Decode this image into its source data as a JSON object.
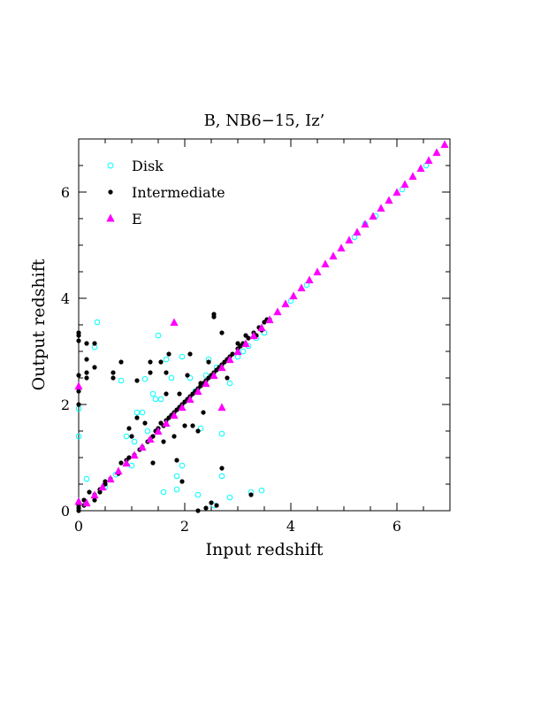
{
  "chart_data": {
    "type": "scatter",
    "title": "B, NB6−15, Iz’",
    "xlabel": "Input redshift",
    "ylabel": "Output redshift",
    "xlim": [
      0,
      7
    ],
    "ylim": [
      0,
      7
    ],
    "xticks": [
      0,
      2,
      4,
      6
    ],
    "yticks": [
      0,
      2,
      4,
      6
    ],
    "xtick_labels": [
      "0",
      "2",
      "4",
      "6"
    ],
    "ytick_labels": [
      "0",
      "2",
      "4",
      "6"
    ],
    "minor_tick_step": 0.5,
    "grid": false,
    "legend_position": "top-left",
    "series": [
      {
        "name": "Disk",
        "marker": "open-circle",
        "color": "#00ffff",
        "points": [
          [
            0.0,
            1.4
          ],
          [
            0.0,
            1.92
          ],
          [
            0.15,
            0.6
          ],
          [
            0.3,
            3.08
          ],
          [
            0.35,
            3.55
          ],
          [
            0.5,
            0.45
          ],
          [
            0.7,
            0.68
          ],
          [
            0.8,
            2.45
          ],
          [
            0.9,
            1.4
          ],
          [
            1.0,
            0.85
          ],
          [
            1.05,
            1.3
          ],
          [
            1.1,
            1.85
          ],
          [
            1.2,
            1.85
          ],
          [
            1.25,
            2.48
          ],
          [
            1.3,
            1.5
          ],
          [
            1.4,
            2.2
          ],
          [
            1.45,
            2.1
          ],
          [
            1.5,
            3.3
          ],
          [
            1.55,
            2.1
          ],
          [
            1.6,
            0.35
          ],
          [
            1.65,
            2.85
          ],
          [
            1.75,
            2.5
          ],
          [
            1.85,
            0.4
          ],
          [
            1.85,
            0.65
          ],
          [
            1.95,
            0.85
          ],
          [
            1.95,
            2.9
          ],
          [
            2.1,
            2.5
          ],
          [
            2.2,
            2.25
          ],
          [
            2.25,
            0.3
          ],
          [
            2.3,
            1.55
          ],
          [
            2.4,
            2.55
          ],
          [
            2.45,
            2.85
          ],
          [
            2.55,
            0.1
          ],
          [
            2.6,
            2.7
          ],
          [
            2.7,
            1.45
          ],
          [
            2.7,
            0.65
          ],
          [
            2.85,
            2.4
          ],
          [
            2.85,
            0.25
          ],
          [
            3.0,
            2.9
          ],
          [
            3.1,
            3.0
          ],
          [
            3.2,
            3.1
          ],
          [
            3.25,
            0.35
          ],
          [
            3.35,
            3.25
          ],
          [
            3.45,
            0.38
          ],
          [
            3.5,
            3.35
          ],
          [
            4.0,
            3.95
          ],
          [
            4.3,
            4.25
          ],
          [
            5.2,
            5.15
          ],
          [
            5.4,
            5.4
          ],
          [
            5.6,
            5.55
          ],
          [
            6.1,
            6.05
          ],
          [
            6.55,
            6.5
          ]
        ]
      },
      {
        "name": "Intermediate",
        "marker": "filled-circle",
        "color": "#000000",
        "points": [
          [
            0.0,
            0.0
          ],
          [
            0.0,
            0.05
          ],
          [
            0.0,
            0.1
          ],
          [
            0.0,
            0.15
          ],
          [
            0.0,
            2.0
          ],
          [
            0.0,
            2.25
          ],
          [
            0.0,
            2.55
          ],
          [
            0.0,
            3.2
          ],
          [
            0.0,
            3.3
          ],
          [
            0.0,
            3.35
          ],
          [
            0.1,
            0.1
          ],
          [
            0.1,
            0.2
          ],
          [
            0.15,
            2.5
          ],
          [
            0.15,
            2.6
          ],
          [
            0.15,
            2.85
          ],
          [
            0.15,
            3.15
          ],
          [
            0.2,
            0.35
          ],
          [
            0.3,
            0.2
          ],
          [
            0.3,
            0.3
          ],
          [
            0.3,
            2.7
          ],
          [
            0.3,
            3.15
          ],
          [
            0.4,
            0.4
          ],
          [
            0.4,
            0.35
          ],
          [
            0.5,
            0.5
          ],
          [
            0.5,
            0.55
          ],
          [
            0.6,
            0.6
          ],
          [
            0.65,
            2.5
          ],
          [
            0.65,
            2.6
          ],
          [
            0.75,
            0.7
          ],
          [
            0.8,
            0.9
          ],
          [
            0.8,
            2.8
          ],
          [
            0.9,
            0.95
          ],
          [
            0.95,
            1.55
          ],
          [
            0.95,
            1.0
          ],
          [
            1.0,
            1.4
          ],
          [
            1.05,
            1.05
          ],
          [
            1.1,
            1.75
          ],
          [
            1.1,
            2.45
          ],
          [
            1.15,
            1.15
          ],
          [
            1.2,
            1.2
          ],
          [
            1.25,
            1.65
          ],
          [
            1.3,
            1.3
          ],
          [
            1.35,
            1.35
          ],
          [
            1.35,
            2.6
          ],
          [
            1.35,
            2.8
          ],
          [
            1.4,
            1.4
          ],
          [
            1.4,
            0.9
          ],
          [
            1.45,
            1.5
          ],
          [
            1.5,
            1.55
          ],
          [
            1.55,
            1.65
          ],
          [
            1.55,
            2.8
          ],
          [
            1.6,
            1.6
          ],
          [
            1.6,
            1.3
          ],
          [
            1.65,
            1.7
          ],
          [
            1.65,
            2.2
          ],
          [
            1.65,
            2.6
          ],
          [
            1.7,
            1.75
          ],
          [
            1.7,
            2.95
          ],
          [
            1.75,
            1.8
          ],
          [
            1.8,
            1.85
          ],
          [
            1.8,
            1.4
          ],
          [
            1.85,
            1.9
          ],
          [
            1.85,
            0.95
          ],
          [
            1.9,
            1.95
          ],
          [
            1.9,
            2.2
          ],
          [
            1.95,
            2.0
          ],
          [
            1.95,
            0.55
          ],
          [
            2.0,
            2.05
          ],
          [
            2.0,
            1.6
          ],
          [
            2.05,
            2.1
          ],
          [
            2.05,
            2.55
          ],
          [
            2.1,
            2.15
          ],
          [
            2.1,
            2.95
          ],
          [
            2.15,
            2.2
          ],
          [
            2.15,
            1.6
          ],
          [
            2.2,
            2.25
          ],
          [
            2.25,
            2.3
          ],
          [
            2.25,
            1.5
          ],
          [
            2.25,
            0.0
          ],
          [
            2.3,
            2.35
          ],
          [
            2.3,
            2.4
          ],
          [
            2.35,
            2.4
          ],
          [
            2.35,
            1.85
          ],
          [
            2.4,
            2.45
          ],
          [
            2.4,
            0.05
          ],
          [
            2.45,
            2.5
          ],
          [
            2.45,
            2.8
          ],
          [
            2.5,
            2.55
          ],
          [
            2.5,
            0.15
          ],
          [
            2.55,
            2.6
          ],
          [
            2.55,
            3.65
          ],
          [
            2.55,
            3.7
          ],
          [
            2.6,
            2.65
          ],
          [
            2.6,
            0.1
          ],
          [
            2.65,
            2.7
          ],
          [
            2.7,
            2.75
          ],
          [
            2.7,
            3.35
          ],
          [
            2.7,
            0.8
          ],
          [
            2.75,
            2.8
          ],
          [
            2.8,
            2.85
          ],
          [
            2.8,
            2.5
          ],
          [
            2.85,
            2.9
          ],
          [
            2.9,
            2.95
          ],
          [
            3.0,
            3.05
          ],
          [
            3.0,
            3.15
          ],
          [
            3.05,
            3.1
          ],
          [
            3.1,
            3.15
          ],
          [
            3.15,
            3.3
          ],
          [
            3.2,
            3.25
          ],
          [
            3.25,
            0.3
          ],
          [
            3.3,
            3.35
          ],
          [
            3.35,
            3.3
          ],
          [
            3.4,
            3.45
          ],
          [
            3.45,
            3.4
          ],
          [
            3.5,
            3.55
          ],
          [
            3.55,
            3.6
          ],
          [
            3.6,
            3.6
          ]
        ]
      },
      {
        "name": "E",
        "marker": "filled-triangle",
        "color": "#ff00ff",
        "points": [
          [
            0.0,
            2.35
          ],
          [
            0.0,
            0.18
          ],
          [
            0.15,
            0.15
          ],
          [
            0.3,
            0.3
          ],
          [
            0.45,
            0.45
          ],
          [
            0.6,
            0.6
          ],
          [
            0.75,
            0.75
          ],
          [
            0.9,
            0.9
          ],
          [
            1.05,
            1.05
          ],
          [
            1.2,
            1.2
          ],
          [
            1.35,
            1.35
          ],
          [
            1.5,
            1.5
          ],
          [
            1.65,
            1.65
          ],
          [
            1.8,
            1.8
          ],
          [
            1.8,
            3.55
          ],
          [
            1.95,
            1.95
          ],
          [
            2.1,
            2.1
          ],
          [
            2.25,
            2.25
          ],
          [
            2.4,
            2.4
          ],
          [
            2.55,
            2.55
          ],
          [
            2.7,
            2.7
          ],
          [
            2.7,
            1.95
          ],
          [
            2.85,
            2.85
          ],
          [
            3.0,
            3.0
          ],
          [
            3.15,
            3.15
          ],
          [
            3.3,
            3.3
          ],
          [
            3.45,
            3.45
          ],
          [
            3.6,
            3.6
          ],
          [
            3.75,
            3.75
          ],
          [
            3.9,
            3.9
          ],
          [
            4.05,
            4.05
          ],
          [
            4.2,
            4.2
          ],
          [
            4.35,
            4.35
          ],
          [
            4.5,
            4.5
          ],
          [
            4.65,
            4.65
          ],
          [
            4.8,
            4.8
          ],
          [
            4.95,
            4.95
          ],
          [
            5.1,
            5.1
          ],
          [
            5.25,
            5.25
          ],
          [
            5.4,
            5.4
          ],
          [
            5.55,
            5.55
          ],
          [
            5.7,
            5.7
          ],
          [
            5.85,
            5.85
          ],
          [
            6.0,
            6.0
          ],
          [
            6.15,
            6.15
          ],
          [
            6.3,
            6.3
          ],
          [
            6.45,
            6.45
          ],
          [
            6.6,
            6.6
          ],
          [
            6.75,
            6.75
          ],
          [
            6.9,
            6.9
          ]
        ]
      }
    ]
  }
}
